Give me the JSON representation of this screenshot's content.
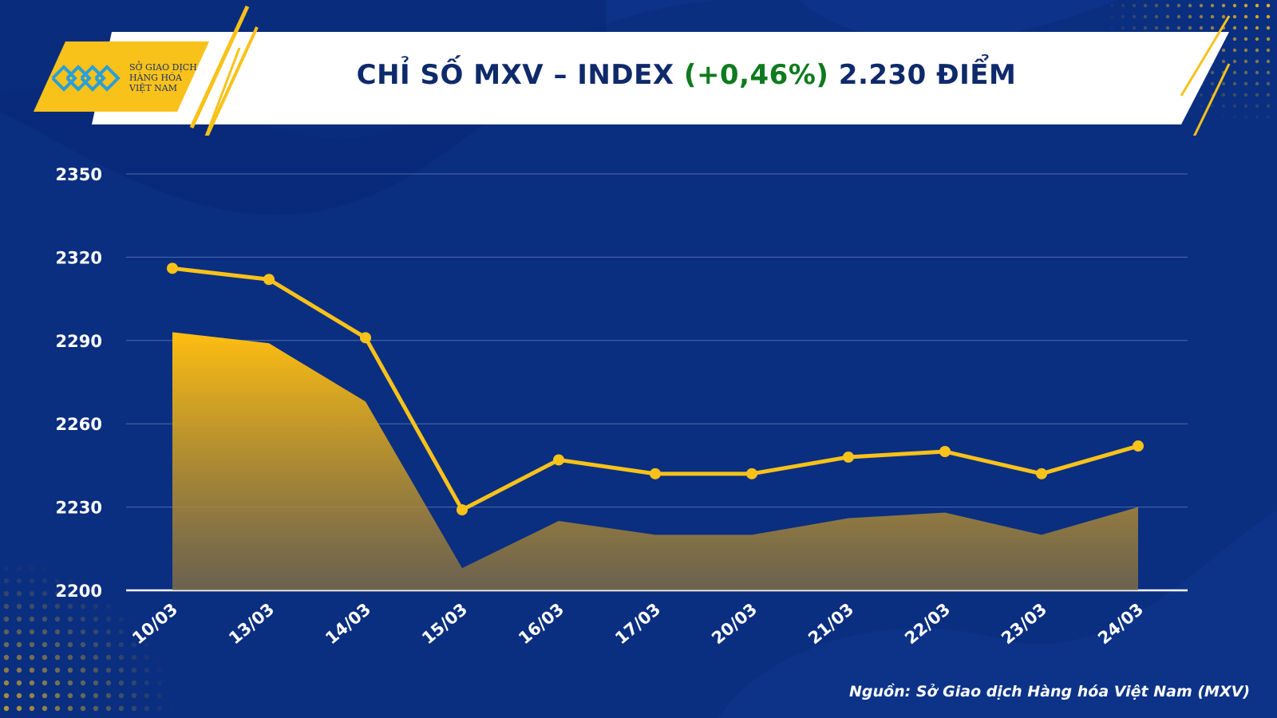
{
  "header": {
    "logo_lines": [
      "SỞ GIAO DỊCH",
      "HÀNG HÓA",
      "VIỆT NAM"
    ],
    "title_prefix": "CHỈ SỐ MXV – INDEX",
    "title_change": "(+0,46%)",
    "title_suffix": "2.230 ĐIỂM"
  },
  "source": "Nguồn: Sở Giao dịch Hàng hóa Việt Nam (MXV)",
  "colors": {
    "background": "#0a2e80",
    "accent_yellow": "#f8c21a",
    "title_change_green": "#0f7a1e",
    "title_text": "#0f2a6b"
  },
  "icons": [
    "mxv-logo-icon"
  ],
  "chart_data": {
    "type": "line",
    "title": "CHỈ SỐ MXV – INDEX (+0,46%) 2.230 ĐIỂM",
    "categories": [
      "10/03",
      "13/03",
      "14/03",
      "15/03",
      "16/03",
      "17/03",
      "20/03",
      "21/03",
      "22/03",
      "23/03",
      "24/03"
    ],
    "series": [
      {
        "type": "line",
        "color": "#f8c21a",
        "values": [
          2316,
          2312,
          2291,
          2229,
          2247,
          2242,
          2242,
          2248,
          2250,
          2242,
          2252
        ]
      },
      {
        "type": "area",
        "color": "#f8c21a",
        "values": [
          2293,
          2289,
          2268,
          2208,
          2225,
          2220,
          2220,
          2226,
          2228,
          2220,
          2230
        ]
      }
    ],
    "yticks": [
      2200,
      2230,
      2260,
      2290,
      2320,
      2350
    ],
    "ylim": [
      2200,
      2350
    ],
    "grid": true,
    "legend": "none"
  }
}
